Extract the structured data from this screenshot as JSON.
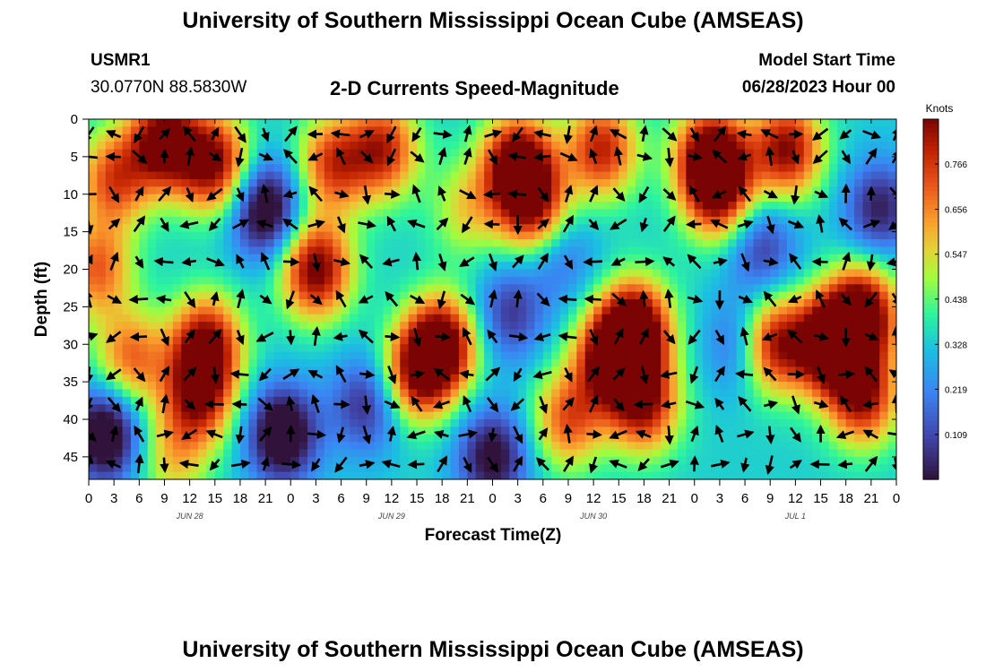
{
  "header": {
    "title": "University of Southern Mississippi Ocean Cube (AMSEAS)",
    "station": "USMR1",
    "coords": "30.0770N  88.5830W",
    "subtitle": "2-D Currents Speed-Magnitude",
    "model_label": "Model Start Time",
    "model_time": "06/28/2023 Hour 00"
  },
  "footer": {
    "title": "University of Southern Mississippi Ocean Cube (AMSEAS)"
  },
  "chart_data": {
    "type": "heatmap",
    "title": "2-D Currents Speed-Magnitude",
    "xlabel": "Forecast Time(Z)",
    "ylabel": "Depth (ft)",
    "x_range": [
      0,
      96
    ],
    "x_unit": "hours from 06/28/2023 00Z",
    "y_range": [
      0,
      48
    ],
    "y_inverted": true,
    "x_ticks": [
      "0",
      "3",
      "6",
      "9",
      "12",
      "15",
      "18",
      "21",
      "0",
      "3",
      "6",
      "9",
      "12",
      "15",
      "18",
      "21",
      "0",
      "3",
      "6",
      "9",
      "12",
      "15",
      "18",
      "21",
      "0",
      "3",
      "6",
      "9",
      "12",
      "15",
      "18",
      "21",
      "0"
    ],
    "y_ticks": [
      "0",
      "5",
      "10",
      "15",
      "20",
      "25",
      "30",
      "35",
      "40",
      "45"
    ],
    "y_tick_values": [
      0,
      5,
      10,
      15,
      20,
      25,
      30,
      35,
      40,
      45
    ],
    "date_labels": [
      "JUN 28",
      "JUN 29",
      "JUN 30",
      "JUL 1"
    ],
    "date_label_hours": [
      12,
      36,
      60,
      84
    ],
    "colorbar": {
      "title": "Knots",
      "tick_labels": [
        "0.766",
        "0.656",
        "0.547",
        "0.438",
        "0.328",
        "0.219",
        "0.109"
      ],
      "tick_values": [
        0.766,
        0.656,
        0.547,
        0.438,
        0.328,
        0.219,
        0.109
      ],
      "range": [
        0.0,
        0.875
      ]
    },
    "blobs": [
      {
        "t": 9,
        "d": 3,
        "v": 0.8
      },
      {
        "t": 15,
        "d": 6,
        "v": 0.72
      },
      {
        "t": 3,
        "d": 8,
        "v": 0.52
      },
      {
        "t": 1,
        "d": 20,
        "v": 0.48
      },
      {
        "t": 5,
        "d": 32,
        "v": 0.48
      },
      {
        "t": 14,
        "d": 30,
        "v": 0.7
      },
      {
        "t": 13,
        "d": 37,
        "v": 0.62
      },
      {
        "t": 27,
        "d": 20,
        "v": 0.76
      },
      {
        "t": 29,
        "d": 6,
        "v": 0.55
      },
      {
        "t": 35,
        "d": 4,
        "v": 0.6
      },
      {
        "t": 42,
        "d": 30,
        "v": 0.78
      },
      {
        "t": 39,
        "d": 34,
        "v": 0.62
      },
      {
        "t": 51,
        "d": 6,
        "v": 0.82
      },
      {
        "t": 53,
        "d": 12,
        "v": 0.6
      },
      {
        "t": 61,
        "d": 4,
        "v": 0.62
      },
      {
        "t": 62,
        "d": 32,
        "v": 0.72
      },
      {
        "t": 65,
        "d": 28,
        "v": 0.85
      },
      {
        "t": 66,
        "d": 38,
        "v": 0.65
      },
      {
        "t": 74,
        "d": 5,
        "v": 0.8
      },
      {
        "t": 75,
        "d": 10,
        "v": 0.58
      },
      {
        "t": 83,
        "d": 4,
        "v": 0.7
      },
      {
        "t": 81,
        "d": 30,
        "v": 0.8
      },
      {
        "t": 88,
        "d": 30,
        "v": 0.86
      },
      {
        "t": 92,
        "d": 26,
        "v": 0.82
      },
      {
        "t": 92,
        "d": 37,
        "v": 0.66
      },
      {
        "t": 57,
        "d": 40,
        "v": 0.5
      },
      {
        "t": 45,
        "d": 12,
        "v": 0.28
      },
      {
        "t": 10,
        "d": 45,
        "v": 0.3
      },
      {
        "t": 21,
        "d": 12,
        "v": -0.6
      },
      {
        "t": 23,
        "d": 42,
        "v": -0.62
      },
      {
        "t": 2,
        "d": 42,
        "v": -0.62
      },
      {
        "t": 48,
        "d": 45,
        "v": -0.5
      },
      {
        "t": 50,
        "d": 26,
        "v": -0.35
      },
      {
        "t": 33,
        "d": 38,
        "v": -0.38
      },
      {
        "t": 78,
        "d": 30,
        "v": -0.42
      },
      {
        "t": 94,
        "d": 12,
        "v": -0.42
      },
      {
        "t": 80,
        "d": 17,
        "v": -0.35
      },
      {
        "t": 56,
        "d": 18,
        "v": -0.25
      }
    ],
    "arrow_grid": {
      "dt": 3,
      "depth_rows": [
        2,
        5,
        10,
        14,
        19,
        24,
        29,
        34,
        38,
        42,
        46
      ]
    }
  }
}
